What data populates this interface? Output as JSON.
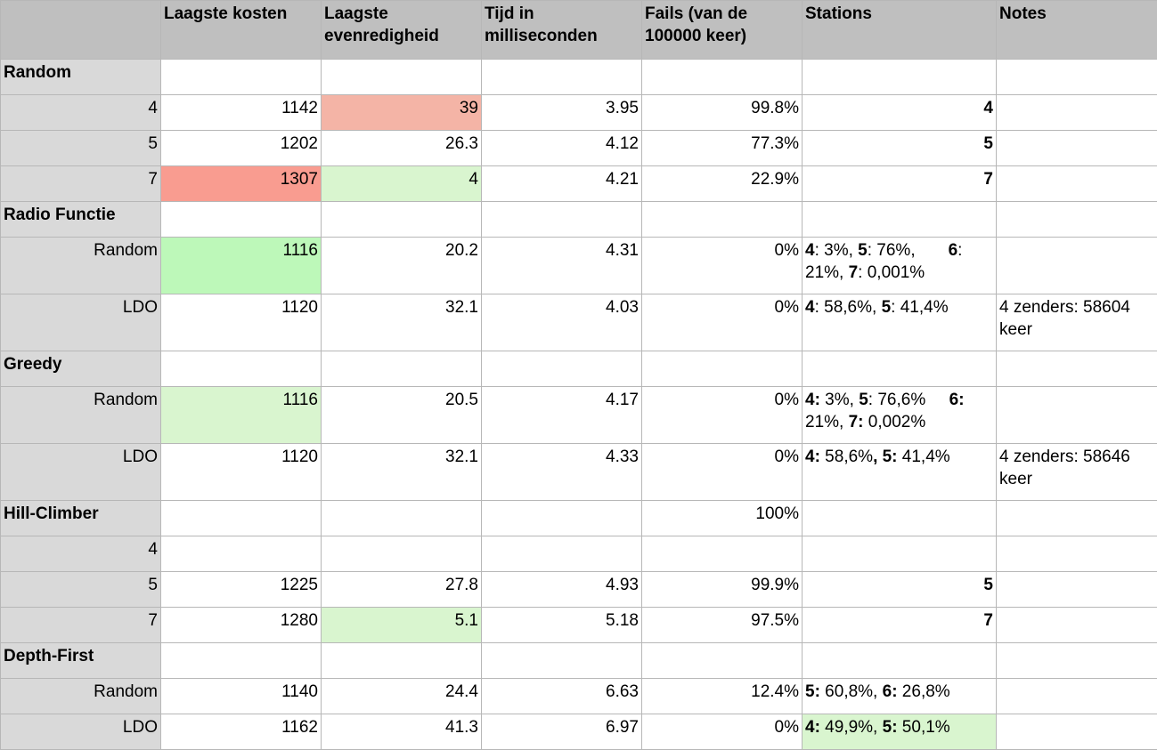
{
  "headers": [
    "",
    "Laagste kosten",
    "Laagste evenredigheid",
    "Tijd in milliseconden",
    "Fails (van de 100000 keer)",
    "Stations",
    "Notes"
  ],
  "groups": {
    "random": {
      "label": "Random",
      "rows": [
        {
          "label": "4",
          "kosten": "1142",
          "even": "39",
          "tijd": "3.95",
          "fails": "99.8%",
          "stations": "4",
          "notes": ""
        },
        {
          "label": "5",
          "kosten": "1202",
          "even": "26.3",
          "tijd": "4.12",
          "fails": "77.3%",
          "stations": "5",
          "notes": ""
        },
        {
          "label": "7",
          "kosten": "1307",
          "even": "4",
          "tijd": "4.21",
          "fails": "22.9%",
          "stations": "7",
          "notes": ""
        }
      ]
    },
    "radio": {
      "label": "Radio Functie",
      "rows": [
        {
          "label": "Random",
          "kosten": "1116",
          "even": "20.2",
          "tijd": "4.31",
          "fails": "0%",
          "notes": "",
          "st": {
            "k1": "4",
            "v1": ": 3%, ",
            "k2": "5",
            "v2": ": 76%,       ",
            "k3": "6",
            "v3": ": 21%, ",
            "k4": "7",
            "v4": ": 0,001%"
          }
        },
        {
          "label": "LDO",
          "kosten": "1120",
          "even": "32.1",
          "tijd": "4.03",
          "fails": "0%",
          "notes": "4 zenders: 58604 keer",
          "st": {
            "k1": "4",
            "v1": ": 58,6%, ",
            "k2": "5",
            "v2": ": 41,4%"
          }
        }
      ]
    },
    "greedy": {
      "label": "Greedy",
      "rows": [
        {
          "label": "Random",
          "kosten": "1116",
          "even": "20.5",
          "tijd": "4.17",
          "fails": "0%",
          "notes": "",
          "st": {
            "k1": "4:",
            "v1": " 3%, ",
            "k2": "5",
            "v2": ": 76,6%     ",
            "k3": "6:",
            "v3": " 21%, ",
            "k4": "7:",
            "v4": " 0,002%"
          }
        },
        {
          "label": "LDO",
          "kosten": "1120",
          "even": "32.1",
          "tijd": "4.33",
          "fails": "0%",
          "notes": "4 zenders: 58646 keer",
          "st": {
            "k1": "4:",
            "v1": " 58,6%",
            "k2": ", 5:",
            "v2": " 41,4%"
          }
        }
      ]
    },
    "hill": {
      "label": "Hill-Climber",
      "fails": "100%",
      "rows": [
        {
          "label": "4",
          "kosten": "",
          "even": "",
          "tijd": "",
          "fails": "",
          "stations": "",
          "notes": ""
        },
        {
          "label": "5",
          "kosten": "1225",
          "even": "27.8",
          "tijd": "4.93",
          "fails": "99.9%",
          "stations": "5",
          "notes": ""
        },
        {
          "label": "7",
          "kosten": "1280",
          "even": "5.1",
          "tijd": "5.18",
          "fails": "97.5%",
          "stations": "7",
          "notes": ""
        }
      ]
    },
    "depth": {
      "label": "Depth-First",
      "rows": [
        {
          "label": "Random",
          "kosten": "1140",
          "even": "24.4",
          "tijd": "6.63",
          "fails": "12.4%",
          "notes": "",
          "st": {
            "k1": "5:",
            "v1": " 60,8%, ",
            "k2": "6:",
            "v2": " 26,8%"
          }
        },
        {
          "label": "LDO",
          "kosten": "1162",
          "even": "41.3",
          "tijd": "6.97",
          "fails": "0%",
          "notes": "",
          "st": {
            "k1": "4:",
            "v1": " 49,9%, ",
            "k2": "5:",
            "v2": " 50,1%"
          }
        }
      ]
    }
  },
  "colors": {
    "header_bg": "#bfbfbf",
    "rowhead_bg": "#d9d9d9",
    "red_light": "#f4b4a6",
    "red": "#f99c90",
    "green_light": "#d9f5cf",
    "green": "#bdf8b9"
  }
}
